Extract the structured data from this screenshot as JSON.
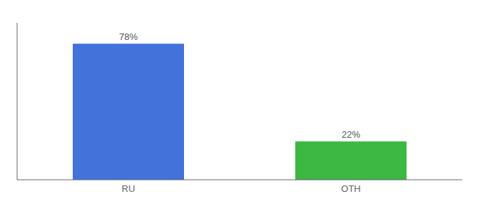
{
  "chart_data": {
    "type": "bar",
    "categories": [
      "RU",
      "OTH"
    ],
    "values": [
      78,
      22
    ],
    "value_labels": [
      "78%",
      "22%"
    ],
    "colors": [
      "#4472DB",
      "#3CB843"
    ],
    "ylim": [
      0,
      90
    ],
    "data_labels": true,
    "tick_labels": "x"
  }
}
